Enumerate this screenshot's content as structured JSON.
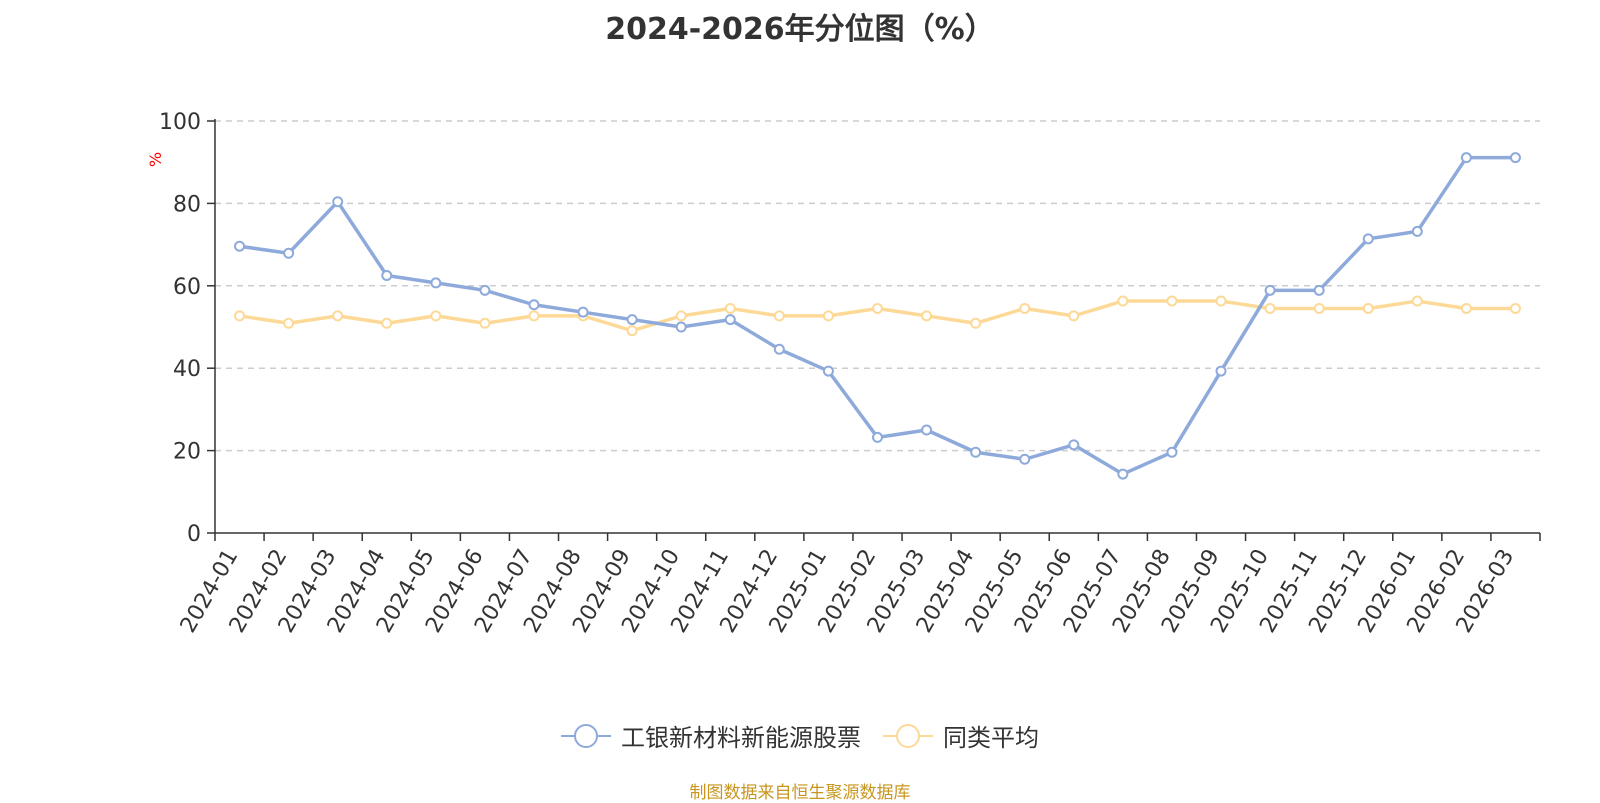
{
  "chart_data": {
    "type": "line",
    "title": "2024-2026年分位图（%）",
    "ylabel": "%",
    "xlabel": "",
    "ylim": [
      0,
      100
    ],
    "yticks": [
      0,
      20,
      40,
      60,
      80,
      100
    ],
    "grid": true,
    "legend_position": "bottom-center",
    "categories": [
      "2024-01",
      "2024-02",
      "2024-03",
      "2024-04",
      "2024-05",
      "2024-06",
      "2024-07",
      "2024-08",
      "2024-09",
      "2024-10",
      "2024-11",
      "2024-12",
      "2025-01",
      "2025-02",
      "2025-03",
      "2025-04",
      "2025-05",
      "2025-06",
      "2025-07",
      "2025-08",
      "2025-09",
      "2025-10",
      "2025-11",
      "2025-12",
      "2026-01",
      "2026-02",
      "2026-03"
    ],
    "series": [
      {
        "name": "工银新材料新能源股票",
        "color": "#8eaadb",
        "values": [
          69.6,
          67.9,
          80.4,
          62.5,
          60.7,
          58.9,
          55.4,
          53.6,
          51.8,
          50.0,
          51.8,
          44.6,
          39.3,
          23.2,
          25.0,
          19.6,
          17.9,
          21.4,
          14.3,
          19.6,
          39.3,
          58.9,
          58.9,
          71.4,
          73.2,
          91.1,
          91.1
        ]
      },
      {
        "name": "同类平均",
        "color": "#fdd998",
        "values": [
          52.7,
          50.9,
          52.7,
          50.9,
          52.7,
          50.9,
          52.7,
          52.7,
          49.1,
          52.7,
          54.5,
          52.7,
          52.7,
          54.5,
          52.7,
          50.9,
          54.5,
          52.7,
          56.3,
          56.3,
          56.3,
          54.5,
          54.5,
          54.5,
          56.3,
          54.5,
          54.5
        ]
      }
    ]
  },
  "source_note": "制图数据来自恒生聚源数据库"
}
